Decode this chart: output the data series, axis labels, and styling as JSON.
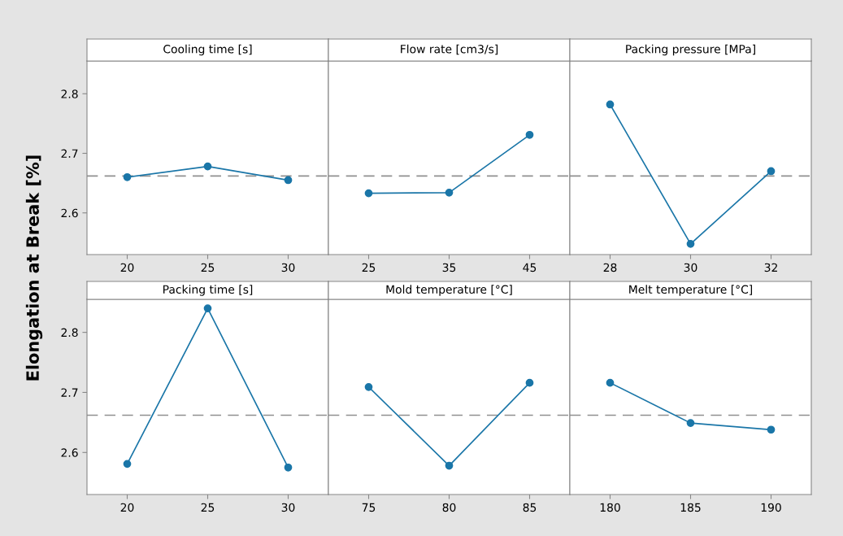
{
  "chart_data": [
    {
      "type": "line",
      "title": "Cooling time [s]",
      "ylabel": "Elongation at Break [%]",
      "x": [
        20,
        25,
        30
      ],
      "values": [
        2.66,
        2.678,
        2.655
      ],
      "color": "#1a76a8",
      "marker": "circle",
      "line_style": "solid",
      "xlim": [
        17.5,
        32.5
      ],
      "xticks": [
        20,
        25,
        30
      ],
      "ylim": [
        2.53,
        2.855
      ],
      "yticks": [
        2.6,
        2.7,
        2.8
      ],
      "ref_lines": [
        {
          "axis": "y",
          "value": 2.662,
          "color": "#909090",
          "line_style": "dashed"
        }
      ],
      "grid": false
    },
    {
      "type": "line",
      "title": "Flow rate [cm3/s]",
      "x": [
        25,
        35,
        45
      ],
      "values": [
        2.633,
        2.634,
        2.731
      ],
      "color": "#1a76a8",
      "marker": "circle",
      "line_style": "solid",
      "xlim": [
        20,
        50
      ],
      "xticks": [
        25,
        35,
        45
      ],
      "ylim": [
        2.53,
        2.855
      ],
      "tick_labels": "x",
      "ref_lines": [
        {
          "axis": "y",
          "value": 2.662,
          "color": "#909090",
          "line_style": "dashed"
        }
      ],
      "grid": false
    },
    {
      "type": "line",
      "title": "Packing pressure [MPa]",
      "x": [
        28,
        30,
        32
      ],
      "values": [
        2.782,
        2.548,
        2.67
      ],
      "color": "#1a76a8",
      "marker": "circle",
      "line_style": "solid",
      "xlim": [
        27,
        33
      ],
      "xticks": [
        28,
        30,
        32
      ],
      "ylim": [
        2.53,
        2.855
      ],
      "tick_labels": "x",
      "ref_lines": [
        {
          "axis": "y",
          "value": 2.662,
          "color": "#909090",
          "line_style": "dashed"
        }
      ],
      "grid": false
    },
    {
      "type": "line",
      "title": "Packing time [s]",
      "x": [
        20,
        25,
        30
      ],
      "values": [
        2.581,
        2.84,
        2.575
      ],
      "color": "#1a76a8",
      "marker": "circle",
      "line_style": "solid",
      "xlim": [
        17.5,
        32.5
      ],
      "xticks": [
        20,
        25,
        30
      ],
      "ylim": [
        2.53,
        2.855
      ],
      "yticks": [
        2.6,
        2.7,
        2.8
      ],
      "ref_lines": [
        {
          "axis": "y",
          "value": 2.662,
          "color": "#909090",
          "line_style": "dashed"
        }
      ],
      "grid": false
    },
    {
      "type": "line",
      "title": "Mold temperature [°C]",
      "x": [
        75,
        80,
        85
      ],
      "values": [
        2.709,
        2.578,
        2.716
      ],
      "color": "#1a76a8",
      "marker": "circle",
      "line_style": "solid",
      "xlim": [
        72.5,
        87.5
      ],
      "xticks": [
        75,
        80,
        85
      ],
      "ylim": [
        2.53,
        2.855
      ],
      "tick_labels": "x",
      "ref_lines": [
        {
          "axis": "y",
          "value": 2.662,
          "color": "#909090",
          "line_style": "dashed"
        }
      ],
      "grid": false
    },
    {
      "type": "line",
      "title": "Melt temperature [°C]",
      "x": [
        180,
        185,
        190
      ],
      "values": [
        2.716,
        2.649,
        2.638
      ],
      "color": "#1a76a8",
      "marker": "circle",
      "line_style": "solid",
      "xlim": [
        177.5,
        192.5
      ],
      "xticks": [
        180,
        185,
        190
      ],
      "ylim": [
        2.53,
        2.855
      ],
      "tick_labels": "x",
      "ref_lines": [
        {
          "axis": "y",
          "value": 2.662,
          "color": "#909090",
          "line_style": "dashed"
        }
      ],
      "grid": false
    }
  ]
}
